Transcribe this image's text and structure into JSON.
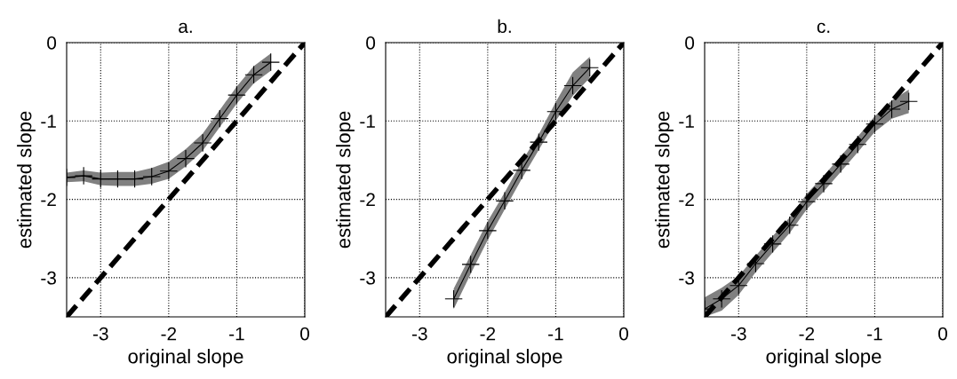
{
  "chart_data": [
    {
      "type": "line",
      "title": "a.",
      "xlabel": "original slope",
      "ylabel": "estimated slope",
      "xlim": [
        -3.5,
        0
      ],
      "ylim": [
        -3.5,
        0
      ],
      "xticks": [
        -3,
        -2,
        -1,
        0
      ],
      "yticks": [
        -3,
        -2,
        -1,
        0
      ],
      "grid": true,
      "series": [
        {
          "color": "#000000",
          "marker": "cross",
          "line_style": "solid",
          "x": [
            -3.5,
            -3.25,
            -3,
            -2.75,
            -2.5,
            -2.25,
            -2,
            -1.75,
            -1.5,
            -1.25,
            -1,
            -0.75,
            -0.5
          ],
          "values": [
            -1.72,
            -1.7,
            -1.74,
            -1.74,
            -1.74,
            -1.71,
            -1.64,
            -1.48,
            -1.28,
            -0.97,
            -0.67,
            -0.41,
            -0.25
          ],
          "lower": [
            -1.78,
            -1.77,
            -1.82,
            -1.83,
            -1.83,
            -1.8,
            -1.74,
            -1.58,
            -1.38,
            -1.08,
            -0.78,
            -0.52,
            -0.36
          ],
          "upper": [
            -1.66,
            -1.63,
            -1.66,
            -1.65,
            -1.65,
            -1.6,
            -1.52,
            -1.36,
            -1.16,
            -0.86,
            -0.56,
            -0.3,
            -0.14
          ]
        },
        {
          "color": "#000000",
          "marker": "none",
          "line_style": "dashed",
          "x": [
            -3.5,
            0
          ],
          "values": [
            -3.5,
            0
          ]
        }
      ]
    },
    {
      "type": "line",
      "title": "b.",
      "xlabel": "original slope",
      "ylabel": "estimated slope",
      "xlim": [
        -3.5,
        0
      ],
      "ylim": [
        -3.5,
        0
      ],
      "xticks": [
        -3,
        -2,
        -1,
        0
      ],
      "yticks": [
        -3,
        -2,
        -1,
        0
      ],
      "grid": true,
      "series": [
        {
          "color": "#000000",
          "marker": "cross",
          "line_style": "solid",
          "x": [
            -2.5,
            -2.25,
            -2,
            -1.75,
            -1.5,
            -1.25,
            -1,
            -0.75,
            -0.5
          ],
          "values": [
            -3.27,
            -2.83,
            -2.4,
            -2.02,
            -1.63,
            -1.27,
            -0.88,
            -0.55,
            -0.32
          ],
          "lower": [
            -3.4,
            -2.95,
            -2.52,
            -2.13,
            -1.74,
            -1.37,
            -1.0,
            -0.68,
            -0.45
          ],
          "upper": [
            -3.14,
            -2.71,
            -2.28,
            -1.91,
            -1.52,
            -1.17,
            -0.76,
            -0.38,
            -0.18
          ]
        },
        {
          "color": "#000000",
          "marker": "none",
          "line_style": "dashed",
          "x": [
            -3.5,
            0
          ],
          "values": [
            -3.5,
            0
          ]
        }
      ]
    },
    {
      "type": "line",
      "title": "c.",
      "xlabel": "original slope",
      "ylabel": "estimated slope",
      "xlim": [
        -3.5,
        0
      ],
      "ylim": [
        -3.5,
        0
      ],
      "xticks": [
        -3,
        -2,
        -1,
        0
      ],
      "yticks": [
        -3,
        -2,
        -1,
        0
      ],
      "grid": true,
      "series": [
        {
          "color": "#000000",
          "marker": "cross",
          "line_style": "solid",
          "x": [
            -3.5,
            -3.25,
            -3,
            -2.75,
            -2.5,
            -2.25,
            -2,
            -1.75,
            -1.5,
            -1.25,
            -1,
            -0.75,
            -0.5
          ],
          "values": [
            -3.4,
            -3.27,
            -3.1,
            -2.82,
            -2.57,
            -2.33,
            -2.03,
            -1.8,
            -1.55,
            -1.3,
            -1.04,
            -0.85,
            -0.75
          ],
          "lower": [
            -3.5,
            -3.42,
            -3.22,
            -2.93,
            -2.68,
            -2.43,
            -2.13,
            -1.9,
            -1.65,
            -1.4,
            -1.14,
            -0.97,
            -0.9
          ],
          "upper": [
            -3.25,
            -3.13,
            -2.98,
            -2.72,
            -2.47,
            -2.23,
            -1.93,
            -1.7,
            -1.45,
            -1.2,
            -0.94,
            -0.74,
            -0.6
          ]
        },
        {
          "color": "#000000",
          "marker": "none",
          "line_style": "dashed",
          "x": [
            -3.5,
            0
          ],
          "values": [
            -3.5,
            0
          ]
        }
      ]
    }
  ]
}
